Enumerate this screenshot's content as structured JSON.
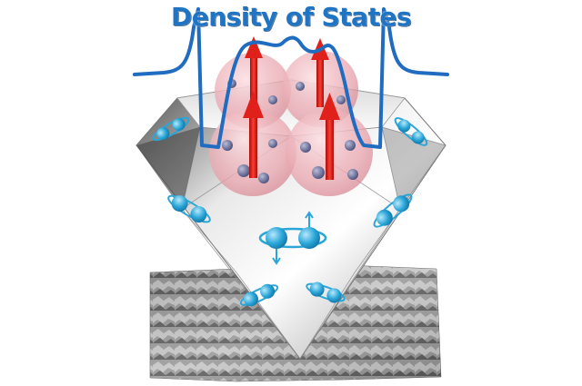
{
  "figure": {
    "title": "Density of States",
    "colors": {
      "dos_curve": "#1f6cc0",
      "spin_arrow": "#e0201a",
      "orbital_sphere": "#e8a0a8",
      "blue_orbital": "#2aa6d8",
      "electron": "#6b6f9a",
      "diamond_light": "#f2f2f2",
      "diamond_dark": "#3a3a3a",
      "surface": "#8a8a8a"
    }
  }
}
